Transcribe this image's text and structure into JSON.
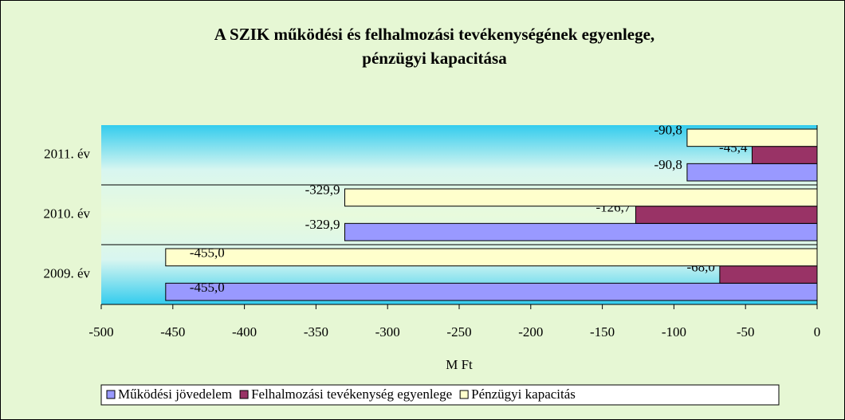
{
  "chart_data": {
    "type": "bar",
    "orientation": "horizontal",
    "title": "A SZIK működési és felhalmozási tevékenységének egyenlege,",
    "subtitle": "pénzügyi kapacitása",
    "categories": [
      "2009. év",
      "2010. év",
      "2011. év"
    ],
    "series": [
      {
        "name": "Működési jövedelem",
        "color": "#9999ff",
        "values": [
          -455.0,
          -329.9,
          -90.8
        ],
        "value_labels": [
          "-455,0",
          "-329,9",
          "-90,8"
        ]
      },
      {
        "name": "Felhalmozási tevékenység egyenlege",
        "color": "#993366",
        "values": [
          -68.0,
          -126.7,
          -45.4
        ],
        "value_labels": [
          "-68,0",
          "-126,7",
          "-45,4"
        ]
      },
      {
        "name": "Pénzügyi kapacitás",
        "color": "#ffffcc",
        "values": [
          -455.0,
          -329.9,
          -90.8
        ],
        "value_labels": [
          "-455,0",
          "-329,9",
          "-90,8"
        ]
      }
    ],
    "x_label": "M Ft",
    "xlim": [
      -500,
      0
    ],
    "xticks": [
      -500,
      -450,
      -400,
      -350,
      -300,
      -250,
      -200,
      -150,
      -100,
      -50,
      0
    ],
    "legend": "bottom"
  }
}
